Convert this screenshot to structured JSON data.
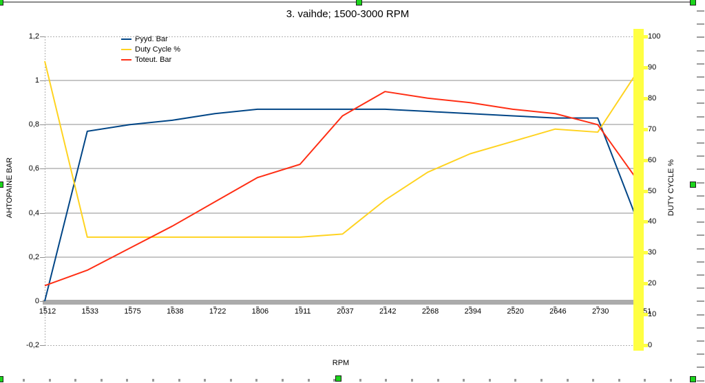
{
  "chart_data": {
    "type": "line",
    "title": "3. vaihde; 1500-3000 RPM",
    "xlabel": "RPM",
    "ylabel_left": "AHTOPAINE BAR",
    "ylabel_right": "DUTY CYCLE %",
    "categories": [
      "1512",
      "1533",
      "1575",
      "1638",
      "1722",
      "1806",
      "1911",
      "2037",
      "2142",
      "2268",
      "2394",
      "2520",
      "2646",
      "2730",
      "2751"
    ],
    "series": [
      {
        "name": "Pyyd. Bar",
        "axis": "left",
        "color": "#004586",
        "values": [
          0.0,
          0.77,
          0.8,
          0.82,
          0.85,
          0.87,
          0.87,
          0.87,
          0.87,
          0.86,
          0.85,
          0.84,
          0.83,
          0.83,
          0.33
        ]
      },
      {
        "name": "Duty Cycle %",
        "axis": "right",
        "color": "#FFD320",
        "values": [
          92,
          35,
          35,
          35,
          35,
          35,
          35,
          36,
          47,
          56,
          62,
          66,
          70,
          69,
          90
        ]
      },
      {
        "name": "Toteut. Bar",
        "axis": "left",
        "color": "#FF2E14",
        "values": [
          0.07,
          0.14,
          0.24,
          0.34,
          0.45,
          0.56,
          0.62,
          0.84,
          0.95,
          0.92,
          0.9,
          0.87,
          0.85,
          0.8,
          0.53
        ]
      }
    ],
    "left_axis": {
      "tick_labels": [
        "1,2",
        "1",
        "0,8",
        "0,6",
        "0,4",
        "0,2",
        "0",
        "-0,2"
      ],
      "tick_values": [
        1.2,
        1.0,
        0.8,
        0.6,
        0.4,
        0.2,
        0.0,
        -0.2
      ],
      "min": -0.2,
      "max": 1.2
    },
    "right_axis": {
      "tick_labels": [
        "100",
        "90",
        "80",
        "70",
        "60",
        "50",
        "40",
        "30",
        "20",
        "10",
        "0"
      ],
      "tick_values": [
        100,
        90,
        80,
        70,
        60,
        50,
        40,
        30,
        20,
        10,
        0
      ],
      "min": 0,
      "max": 100
    },
    "grid": true,
    "legend_position": "top-left-inside"
  },
  "colors": {
    "highlight_bar": "#FFFF42",
    "selection_handle": "#1BD41B",
    "gridline": "#C6C6C6",
    "axis_band": "#ABABAB"
  }
}
